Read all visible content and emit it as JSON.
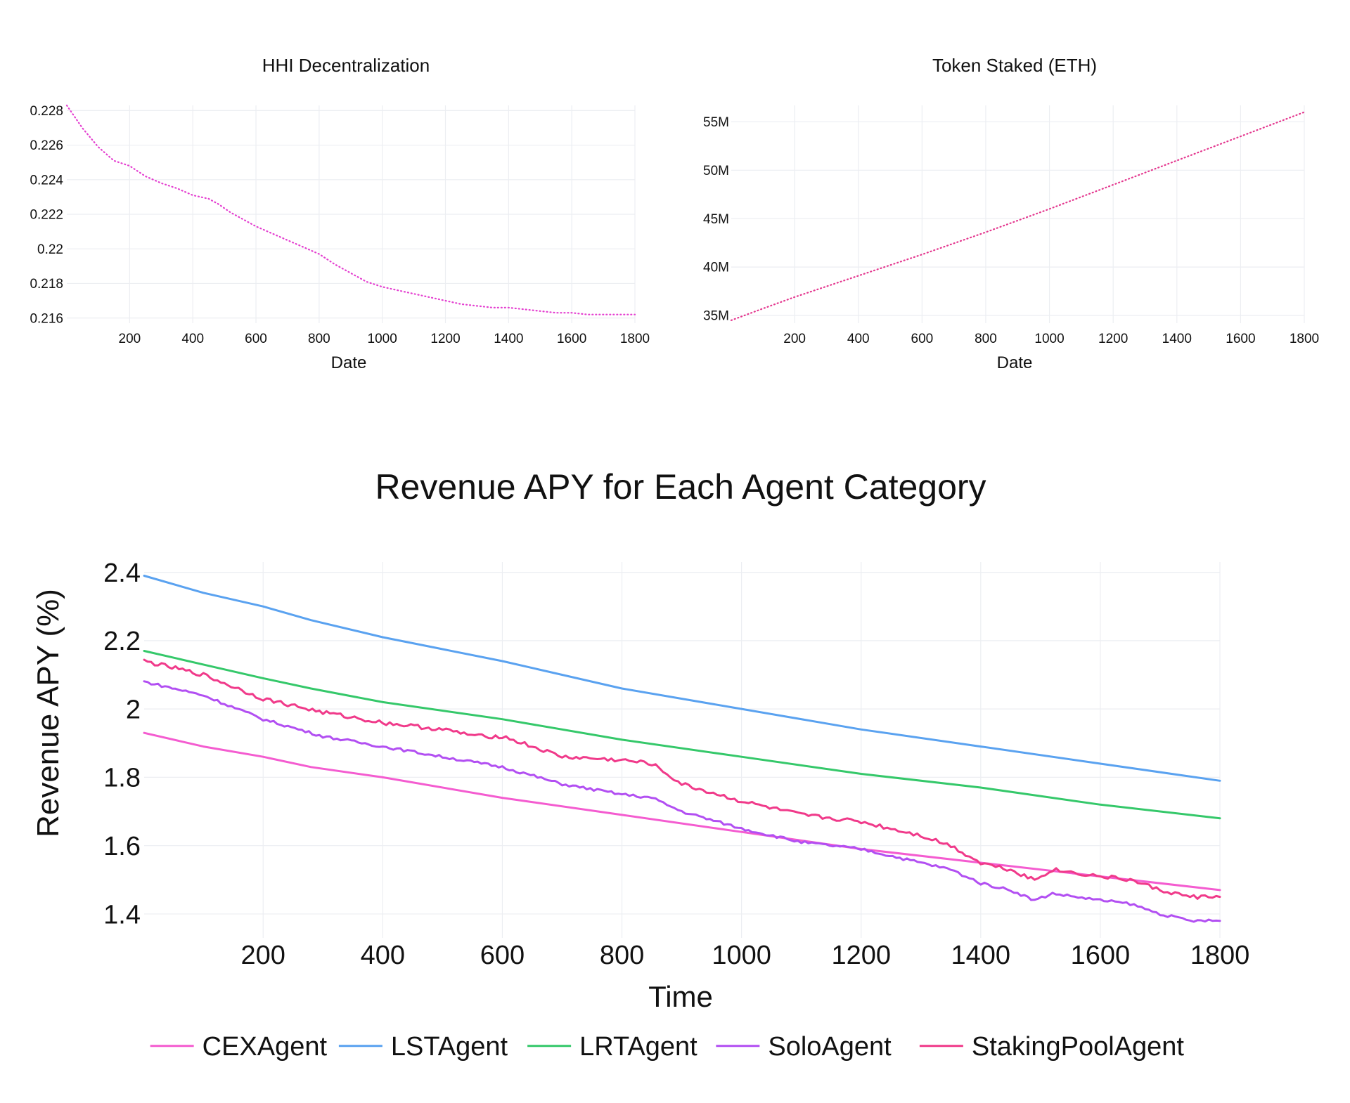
{
  "chart_data": [
    {
      "id": "hhi",
      "type": "line",
      "title": "HHI Decentralization",
      "xlabel": "Date",
      "ylabel": "",
      "xlim": [
        1,
        1800
      ],
      "ylim": [
        0.2157,
        0.2283
      ],
      "x_ticks": [
        200,
        400,
        600,
        800,
        1000,
        1200,
        1400,
        1600,
        1800
      ],
      "y_ticks": [
        0.216,
        0.218,
        0.22,
        0.222,
        0.224,
        0.226,
        0.228
      ],
      "y_tick_labels": [
        "0.216",
        "0.218",
        "0.22",
        "0.222",
        "0.224",
        "0.226",
        "0.228"
      ],
      "grid": true,
      "line_style": "dotted",
      "series": [
        {
          "color": "#e43fd0",
          "points": [
            [
              1,
              0.2283
            ],
            [
              50,
              0.227
            ],
            [
              100,
              0.2259
            ],
            [
              150,
              0.2251
            ],
            [
              200,
              0.2248
            ],
            [
              250,
              0.2242
            ],
            [
              300,
              0.2238
            ],
            [
              350,
              0.2235
            ],
            [
              400,
              0.2231
            ],
            [
              450,
              0.2229
            ],
            [
              480,
              0.2226
            ],
            [
              520,
              0.2221
            ],
            [
              560,
              0.2217
            ],
            [
              600,
              0.2213
            ],
            [
              650,
              0.2209
            ],
            [
              700,
              0.2205
            ],
            [
              750,
              0.2201
            ],
            [
              800,
              0.2197
            ],
            [
              850,
              0.2191
            ],
            [
              900,
              0.2186
            ],
            [
              950,
              0.2181
            ],
            [
              1000,
              0.2178
            ],
            [
              1050,
              0.2176
            ],
            [
              1100,
              0.2174
            ],
            [
              1150,
              0.2172
            ],
            [
              1200,
              0.217
            ],
            [
              1250,
              0.2168
            ],
            [
              1300,
              0.2167
            ],
            [
              1350,
              0.2166
            ],
            [
              1400,
              0.2166
            ],
            [
              1450,
              0.2165
            ],
            [
              1500,
              0.2164
            ],
            [
              1550,
              0.2163
            ],
            [
              1600,
              0.2163
            ],
            [
              1650,
              0.2162
            ],
            [
              1700,
              0.2162
            ],
            [
              1750,
              0.2162
            ],
            [
              1800,
              0.2162
            ]
          ]
        }
      ]
    },
    {
      "id": "staked",
      "type": "line",
      "title": "Token Staked (ETH)",
      "xlabel": "Date",
      "ylabel": "",
      "xlim": [
        1,
        1800
      ],
      "ylim": [
        34200000,
        56700000
      ],
      "x_ticks": [
        200,
        400,
        600,
        800,
        1000,
        1200,
        1400,
        1600,
        1800
      ],
      "y_ticks": [
        35000000,
        40000000,
        45000000,
        50000000,
        55000000
      ],
      "y_tick_labels": [
        "35M",
        "40M",
        "45M",
        "50M",
        "55M"
      ],
      "grid": true,
      "line_style": "dotted",
      "series": [
        {
          "color": "#e4388f",
          "points": [
            [
              1,
              34500000
            ],
            [
              100,
              35700000
            ],
            [
              200,
              36900000
            ],
            [
              400,
              39100000
            ],
            [
              600,
              41300000
            ],
            [
              800,
              43600000
            ],
            [
              1000,
              46000000
            ],
            [
              1200,
              48500000
            ],
            [
              1400,
              51000000
            ],
            [
              1600,
              53500000
            ],
            [
              1800,
              56000000
            ]
          ]
        }
      ]
    },
    {
      "id": "apy",
      "type": "line",
      "title": "Revenue APY for Each Agent Category",
      "xlabel": "Time",
      "ylabel": "Revenue APY (%)",
      "xlim": [
        1,
        1800
      ],
      "ylim": [
        1.33,
        2.43
      ],
      "x_ticks": [
        200,
        400,
        600,
        800,
        1000,
        1200,
        1400,
        1600,
        1800
      ],
      "y_ticks": [
        1.4,
        1.6,
        1.8,
        2,
        2.2,
        2.4
      ],
      "y_tick_labels": [
        "1.4",
        "1.6",
        "1.8",
        "2",
        "2.2",
        "2.4"
      ],
      "grid": true,
      "legend": "bottom",
      "series": [
        {
          "name": "CEXAgent",
          "color": "#f45cd0",
          "noise": 0,
          "points": [
            [
              1,
              1.93
            ],
            [
              100,
              1.89
            ],
            [
              200,
              1.86
            ],
            [
              280,
              1.83
            ],
            [
              400,
              1.8
            ],
            [
              600,
              1.74
            ],
            [
              800,
              1.69
            ],
            [
              1000,
              1.64
            ],
            [
              1200,
              1.59
            ],
            [
              1400,
              1.55
            ],
            [
              1600,
              1.51
            ],
            [
              1800,
              1.47
            ]
          ]
        },
        {
          "name": "LSTAgent",
          "color": "#5aa2f0",
          "noise": 0,
          "points": [
            [
              1,
              2.39
            ],
            [
              100,
              2.34
            ],
            [
              200,
              2.3
            ],
            [
              280,
              2.26
            ],
            [
              400,
              2.21
            ],
            [
              600,
              2.14
            ],
            [
              800,
              2.06
            ],
            [
              1000,
              2.0
            ],
            [
              1200,
              1.94
            ],
            [
              1400,
              1.89
            ],
            [
              1600,
              1.84
            ],
            [
              1800,
              1.79
            ]
          ]
        },
        {
          "name": "LRTAgent",
          "color": "#35c86a",
          "noise": 0,
          "points": [
            [
              1,
              2.17
            ],
            [
              100,
              2.13
            ],
            [
              200,
              2.09
            ],
            [
              280,
              2.06
            ],
            [
              400,
              2.02
            ],
            [
              600,
              1.97
            ],
            [
              800,
              1.91
            ],
            [
              1000,
              1.86
            ],
            [
              1200,
              1.81
            ],
            [
              1400,
              1.77
            ],
            [
              1600,
              1.72
            ],
            [
              1800,
              1.68
            ]
          ]
        },
        {
          "name": "SoloAgent",
          "color": "#b24ff2",
          "noise": 0.004,
          "points": [
            [
              1,
              2.08
            ],
            [
              100,
              2.04
            ],
            [
              200,
              1.97
            ],
            [
              300,
              1.92
            ],
            [
              400,
              1.89
            ],
            [
              500,
              1.86
            ],
            [
              600,
              1.83
            ],
            [
              700,
              1.78
            ],
            [
              800,
              1.75
            ],
            [
              850,
              1.74
            ],
            [
              900,
              1.7
            ],
            [
              1000,
              1.65
            ],
            [
              1100,
              1.61
            ],
            [
              1200,
              1.59
            ],
            [
              1300,
              1.55
            ],
            [
              1350,
              1.53
            ],
            [
              1400,
              1.49
            ],
            [
              1450,
              1.47
            ],
            [
              1490,
              1.44
            ],
            [
              1520,
              1.46
            ],
            [
              1600,
              1.44
            ],
            [
              1650,
              1.43
            ],
            [
              1700,
              1.4
            ],
            [
              1750,
              1.38
            ],
            [
              1800,
              1.38
            ]
          ]
        },
        {
          "name": "StakingPoolAgent",
          "color": "#f03a8a",
          "noise": 0.006,
          "points": [
            [
              1,
              2.14
            ],
            [
              100,
              2.1
            ],
            [
              200,
              2.03
            ],
            [
              300,
              1.99
            ],
            [
              400,
              1.96
            ],
            [
              500,
              1.94
            ],
            [
              560,
              1.92
            ],
            [
              600,
              1.92
            ],
            [
              650,
              1.89
            ],
            [
              700,
              1.86
            ],
            [
              800,
              1.85
            ],
            [
              850,
              1.84
            ],
            [
              900,
              1.78
            ],
            [
              1000,
              1.73
            ],
            [
              1100,
              1.69
            ],
            [
              1200,
              1.67
            ],
            [
              1250,
              1.65
            ],
            [
              1300,
              1.63
            ],
            [
              1350,
              1.6
            ],
            [
              1400,
              1.55
            ],
            [
              1450,
              1.53
            ],
            [
              1490,
              1.5
            ],
            [
              1520,
              1.53
            ],
            [
              1600,
              1.51
            ],
            [
              1650,
              1.5
            ],
            [
              1700,
              1.47
            ],
            [
              1750,
              1.45
            ],
            [
              1800,
              1.45
            ]
          ]
        }
      ]
    }
  ]
}
